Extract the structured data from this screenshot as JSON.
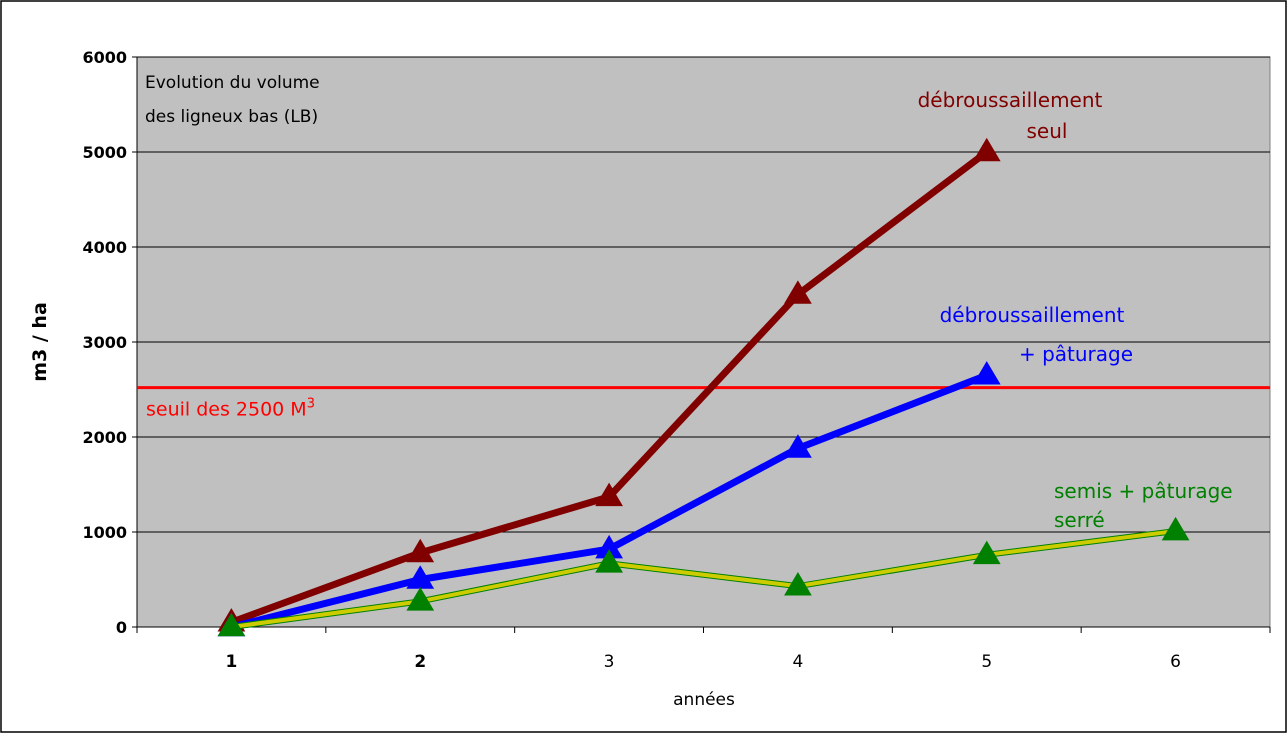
{
  "chart_data": {
    "type": "line",
    "categories": [
      "1",
      "2",
      "3",
      "4",
      "5",
      "6"
    ],
    "bold_categories": [
      "1",
      "2"
    ],
    "ylabel": "m3 / ha",
    "xlabel": "années",
    "ylim": [
      0,
      6000
    ],
    "yticks": [
      0,
      1000,
      2000,
      3000,
      4000,
      5000,
      6000
    ],
    "yticks_text": [
      "0",
      "1000",
      "2000",
      "3000",
      "4000",
      "5000",
      "6000"
    ],
    "grid": "horizontal",
    "background": "#c0c0c0",
    "info_box": {
      "line1": "Evolution du volume",
      "line2": "des ligneux bas (LB)"
    },
    "threshold": {
      "value": 2520,
      "color": "#ff0000",
      "label": "seuil des 2500 M",
      "label_sup": "3"
    },
    "series": [
      {
        "values": [
          50,
          780,
          1370,
          3500,
          5000,
          null
        ],
        "color": "#800000",
        "line_width": 7,
        "label_lines": [
          "débroussaillement",
          "seul"
        ]
      },
      {
        "values": [
          0,
          500,
          820,
          1880,
          2650,
          null
        ],
        "color": "#0000ff",
        "line_width": 7,
        "label_lines": [
          "débroussaillement",
          "+ pâturage"
        ]
      },
      {
        "values": [
          0,
          270,
          670,
          430,
          760,
          1010
        ],
        "color": "#008000",
        "line_color": "#cccc00",
        "line_width": 4,
        "label_lines": [
          "semis + pâturage",
          "serré"
        ]
      }
    ]
  }
}
